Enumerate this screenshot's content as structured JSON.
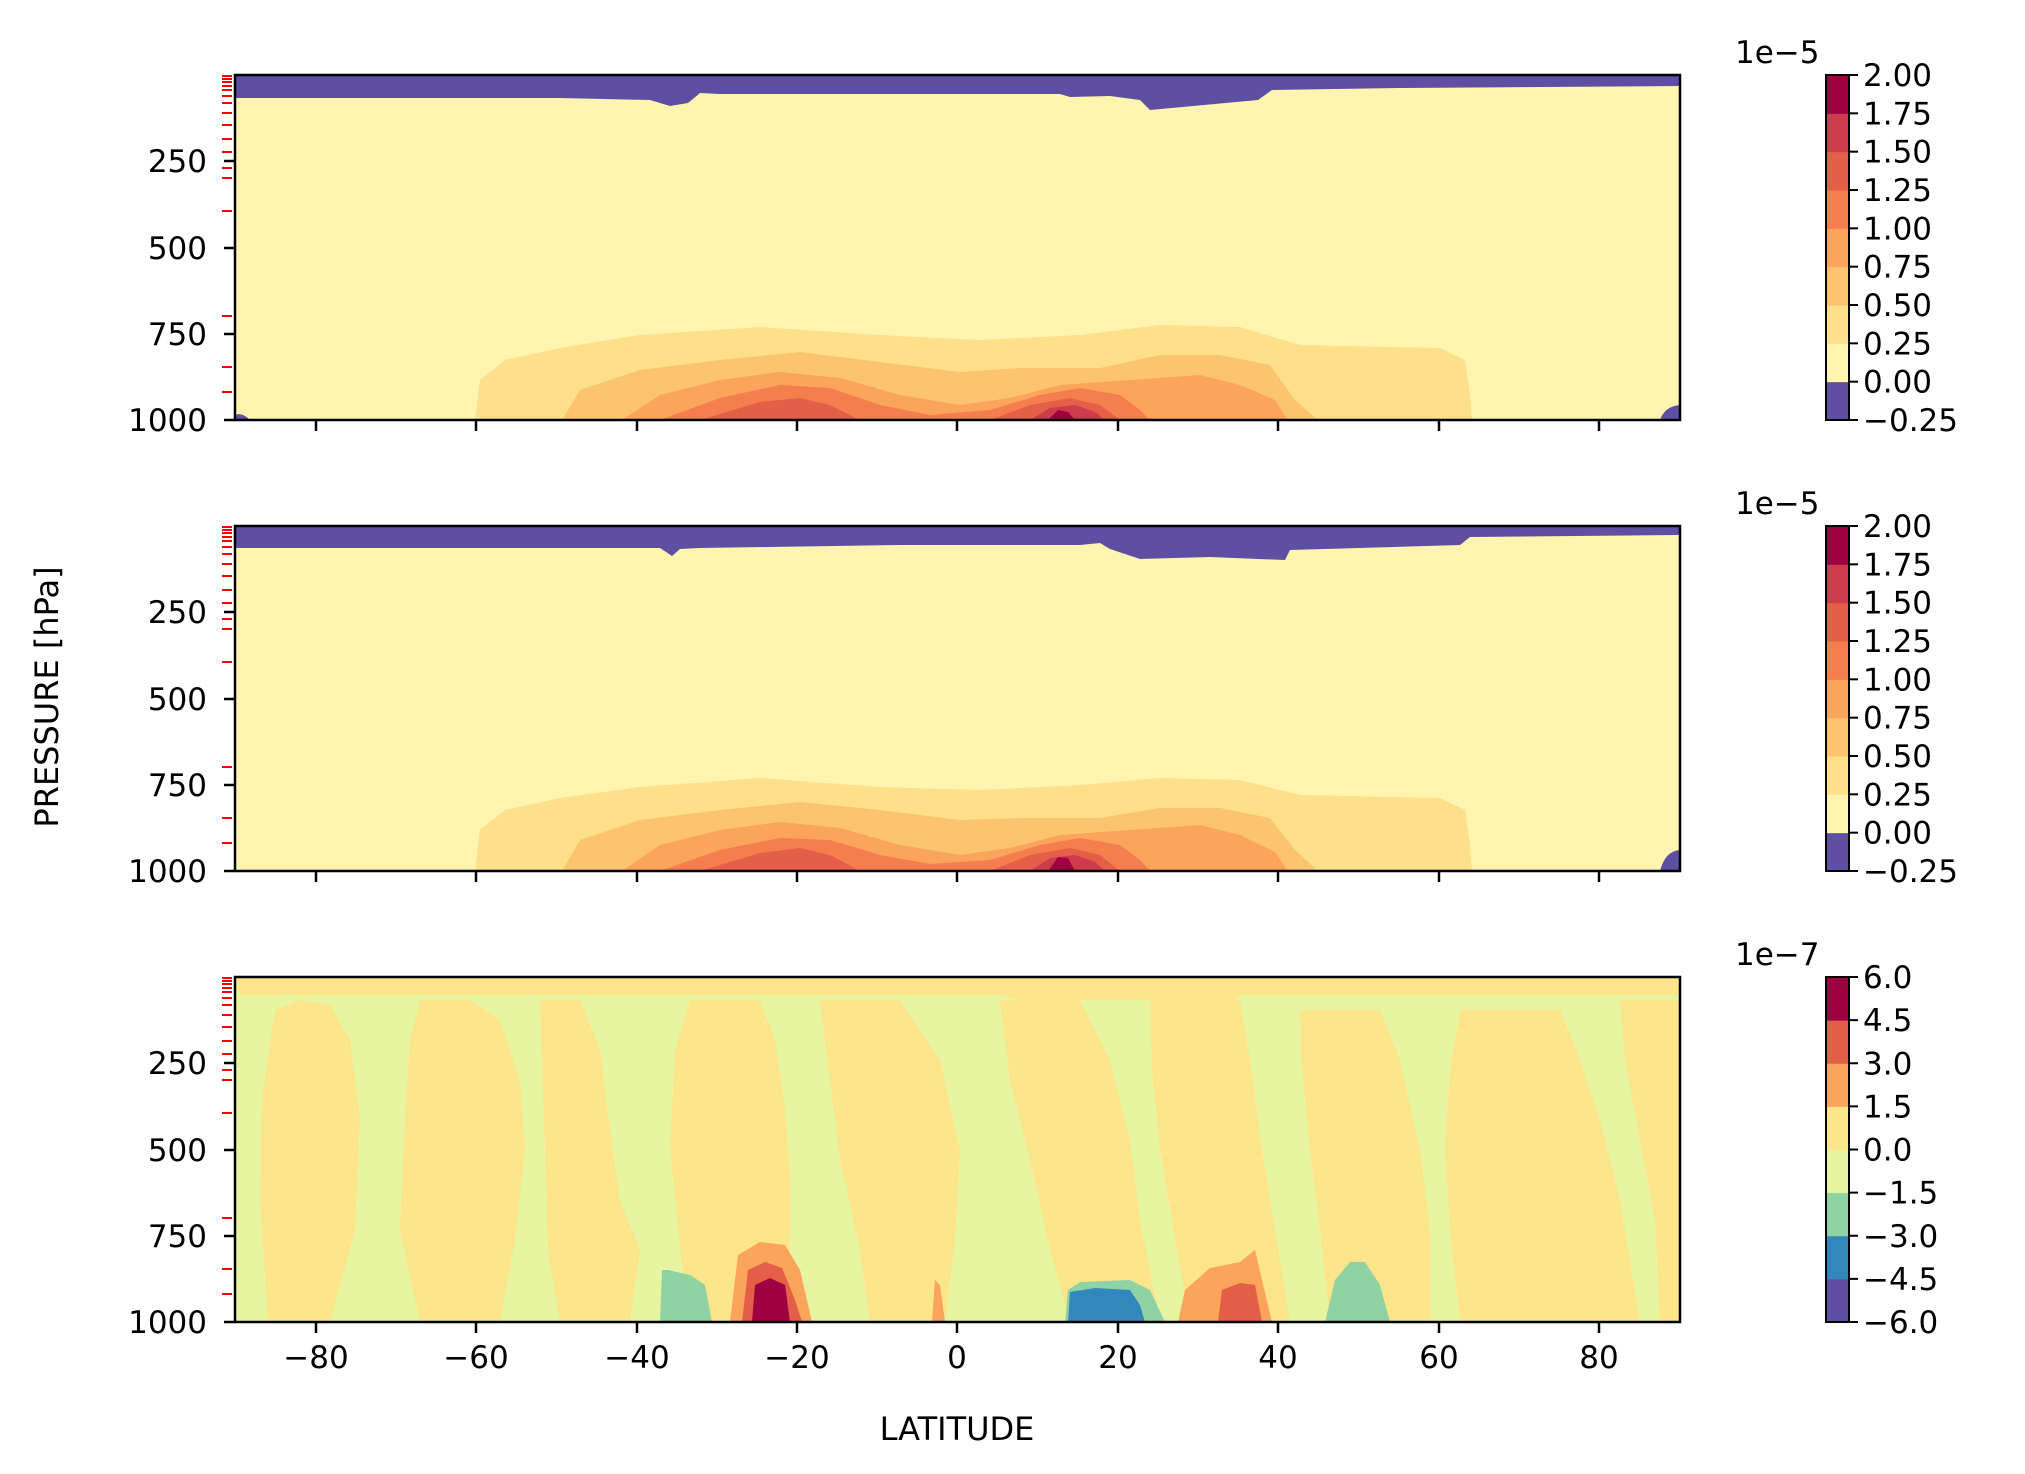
{
  "chart_data": {
    "type": "contourf",
    "xlabel": "LATITUDE",
    "ylabel": "PRESSURE [hPa]",
    "x_ticks": [
      -80,
      -60,
      -40,
      -20,
      0,
      20,
      40,
      60,
      80
    ],
    "x_tick_labels": [
      "−80",
      "−60",
      "−40",
      "−20",
      "0",
      "20",
      "40",
      "60",
      "80"
    ],
    "xlim": [
      -90,
      90
    ],
    "ylim": [
      1000,
      0
    ],
    "y_ticks": [
      250,
      500,
      750,
      1000
    ],
    "y_tick_labels": [
      "250",
      "500",
      "750",
      "1000"
    ],
    "model_levels_hpa": [
      3,
      7,
      12,
      18,
      25,
      35,
      50,
      70,
      100,
      130,
      160,
      200,
      270,
      310,
      380,
      700,
      860,
      930,
      1000
    ],
    "panels": [
      {
        "name": "top",
        "colormap": "Spectral_r",
        "colorbar_offset": "1e−5",
        "levels": [
          -0.25,
          0.0,
          0.25,
          0.5,
          0.75,
          1.0,
          1.25,
          1.5,
          1.75,
          2.0
        ],
        "colorbar_labels": [
          "−0.25",
          "0.00",
          "0.25",
          "0.50",
          "0.75",
          "1.00",
          "1.25",
          "1.50",
          "1.75",
          "2.00"
        ],
        "colors": [
          "#5e4fa2",
          "#fff5b0",
          "#fee08b",
          "#fdc470",
          "#fba45c",
          "#f47e4d",
          "#e45e48",
          "#ce3b4c",
          "#9e0142"
        ],
        "features": [
          {
            "value_band": "< 0",
            "where": "top layer, p < 50 hPa, all latitudes"
          },
          {
            "value_band": "0.25-0.50",
            "where": "lower troposphere, lat -60 to 63, p > 780"
          },
          {
            "value_band": "1.75-2.00",
            "where": "max near lat 12, p ~ 990"
          }
        ]
      },
      {
        "name": "middle",
        "colormap": "Spectral_r",
        "colorbar_offset": "1e−5",
        "levels": [
          -0.25,
          0.0,
          0.25,
          0.5,
          0.75,
          1.0,
          1.25,
          1.5,
          1.75,
          2.0
        ],
        "colorbar_labels": [
          "−0.25",
          "0.00",
          "0.25",
          "0.50",
          "0.75",
          "1.00",
          "1.25",
          "1.50",
          "1.75",
          "2.00"
        ],
        "colors": [
          "#5e4fa2",
          "#fff5b0",
          "#fee08b",
          "#fdc470",
          "#fba45c",
          "#f47e4d",
          "#e45e48",
          "#ce3b4c",
          "#9e0142"
        ],
        "features": [
          {
            "value_band": "< 0",
            "where": "top layer, p < 60 hPa"
          },
          {
            "value_band": "1.75-2.00",
            "where": "max near lat 12, p ~ 990"
          }
        ]
      },
      {
        "name": "bottom",
        "colormap": "Spectral_r",
        "colorbar_offset": "1e−7",
        "levels": [
          -6.0,
          -4.5,
          -3.0,
          -1.5,
          0.0,
          1.5,
          3.0,
          4.5,
          6.0
        ],
        "colorbar_labels": [
          "−6.0",
          "−4.5",
          "−3.0",
          "−1.5",
          "0.0",
          "1.5",
          "3.0",
          "4.5",
          "6.0"
        ],
        "colors": [
          "#5e4fa2",
          "#3288bd",
          "#8fd2a4",
          "#e8f5a0",
          "#fde58c",
          "#fba45c",
          "#e45e48",
          "#9e0142"
        ],
        "features": [
          {
            "value_band": "4.5-6.0",
            "where": "lat -23, p ~ 950"
          },
          {
            "value_band": "-4.5 to -3.0",
            "where": "lat 15-22, p > 900"
          },
          {
            "value_band": "3.0-4.5",
            "where": "lat 33-37, p > 880"
          },
          {
            "value_band": "-3.0 to -1.5",
            "where": "lat -36 and lat 50, p > 880"
          }
        ]
      }
    ]
  }
}
